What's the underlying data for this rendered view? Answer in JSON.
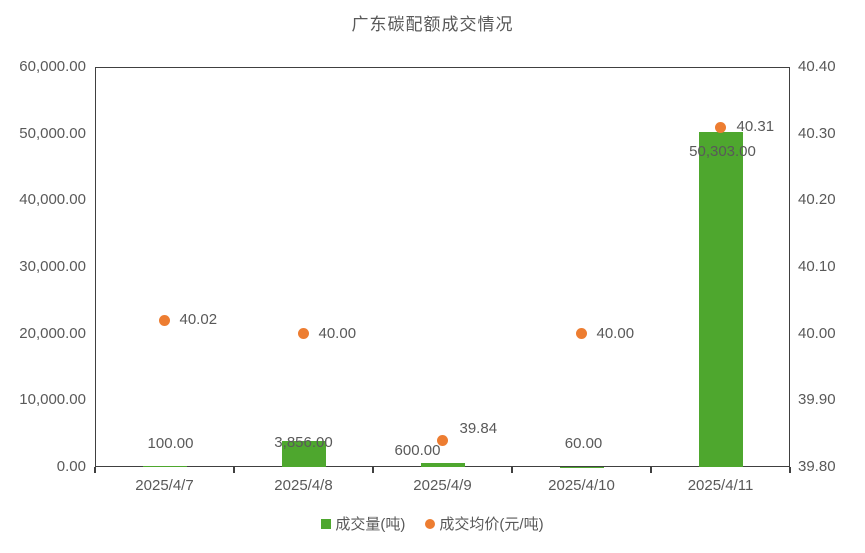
{
  "chart_data": {
    "type": "bar",
    "title": "广东碳配额成交情况",
    "categories": [
      "2025/4/7",
      "2025/4/8",
      "2025/4/9",
      "2025/4/10",
      "2025/4/11"
    ],
    "series": [
      {
        "name": "成交量(吨)",
        "type": "bar",
        "axis": "left",
        "color": "#4EA72E",
        "values": [
          100,
          3856,
          600,
          60,
          50303
        ],
        "labels": [
          "100.00",
          "3,856.00",
          "600.00",
          "60.00",
          "50,303.00"
        ]
      },
      {
        "name": "成交均价(元/吨)",
        "type": "scatter",
        "axis": "right",
        "color": "#ED7D31",
        "values": [
          40.02,
          40.0,
          39.84,
          40.0,
          40.31
        ],
        "labels": [
          "40.02",
          "40.00",
          "39.84",
          "40.00",
          "40.31"
        ]
      }
    ],
    "left_axis": {
      "min": 0,
      "max": 60000,
      "tick_labels": [
        "0.00",
        "10,000.00",
        "20,000.00",
        "30,000.00",
        "40,000.00",
        "50,000.00",
        "60,000.00"
      ]
    },
    "right_axis": {
      "min": 39.8,
      "max": 40.4,
      "tick_labels": [
        "39.80",
        "39.90",
        "40.00",
        "40.10",
        "40.20",
        "40.30",
        "40.40"
      ]
    },
    "legend": [
      "成交量(吨)",
      "成交均价(元/吨)"
    ],
    "legend_position": "bottom-center",
    "grid": false,
    "plot_border": true,
    "layout_hints": {
      "volume_label_dx": [
        6,
        0,
        -25,
        2,
        2
      ],
      "volume_label_cy": [
        444,
        443,
        451,
        444,
        152
      ],
      "price_label_dx": [
        15,
        15,
        17,
        15,
        16
      ],
      "price_label_dy": [
        0,
        0,
        -11,
        0,
        0
      ]
    },
    "colors": {
      "bar": "#4EA72E",
      "dot": "#ED7D31",
      "axis_text": "#595959",
      "border": "#404040"
    }
  }
}
